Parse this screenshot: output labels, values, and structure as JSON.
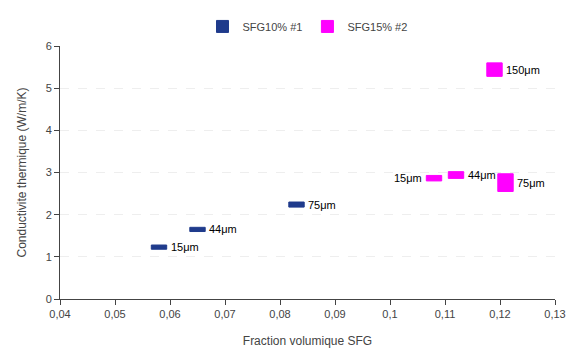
{
  "chart_data": {
    "type": "floating_bar",
    "xlabel": "Fraction volumique SFG",
    "ylabel": "Conductivite thermique (W/m/K)",
    "xlim": [
      0.04,
      0.13
    ],
    "ylim": [
      0,
      6
    ],
    "xticks": [
      {
        "value": 0.04,
        "label": "0,04"
      },
      {
        "value": 0.05,
        "label": "0,05"
      },
      {
        "value": 0.06,
        "label": "0,06"
      },
      {
        "value": 0.07,
        "label": "0,07"
      },
      {
        "value": 0.08,
        "label": "0,08"
      },
      {
        "value": 0.09,
        "label": "0,09"
      },
      {
        "value": 0.1,
        "label": "0,1"
      },
      {
        "value": 0.11,
        "label": "0,11"
      },
      {
        "value": 0.12,
        "label": "0,12"
      },
      {
        "value": 0.13,
        "label": "0,13"
      }
    ],
    "yticks": [
      0,
      1,
      2,
      3,
      4,
      5,
      6
    ],
    "grid": true,
    "legend": "top",
    "series": [
      {
        "name": "SFG10% #1",
        "color": "#1F3B8C",
        "x": [
          0.058,
          0.065,
          0.083
        ],
        "low": [
          1.18,
          1.6,
          2.18
        ],
        "high": [
          1.28,
          1.7,
          2.3
        ],
        "labels": [
          "15μm",
          "44μm",
          "75μm"
        ]
      },
      {
        "name": "SFG15% #2",
        "color": "#FF00FF",
        "x": [
          0.108,
          0.112,
          0.119,
          0.121
        ],
        "low": [
          2.8,
          2.86,
          5.28,
          2.55
        ],
        "high": [
          2.93,
          3.02,
          5.6,
          2.97
        ],
        "labels": [
          "15μm",
          "44μm",
          "150μm",
          "75μm"
        ]
      }
    ]
  }
}
